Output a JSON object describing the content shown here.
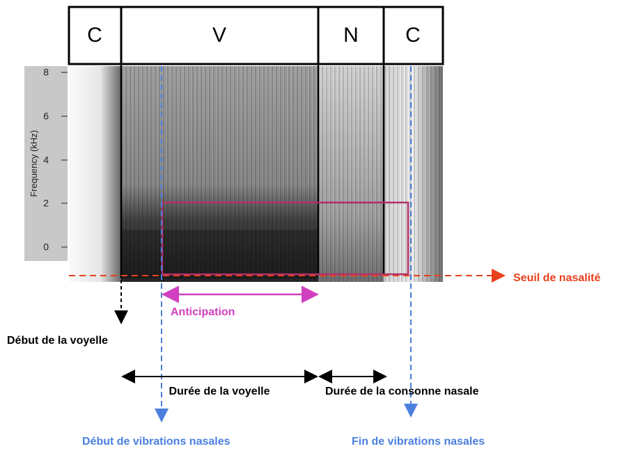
{
  "segments": [
    "C",
    "V",
    "N",
    "C"
  ],
  "axis": {
    "label": "Frequency (kHz)",
    "ticks": [
      "8",
      "6",
      "4",
      "2",
      "0"
    ]
  },
  "annotations": {
    "threshold": "Seuil de nasalité",
    "anticipation": "Anticipation",
    "vowel_onset": "Début de la voyelle",
    "vowel_duration": "Durée de la voyelle",
    "nasal_duration": "Durée de la consonne nasale",
    "nasal_onset": "Début de vibrations nasales",
    "nasal_offset": "Fin de vibrations nasales"
  }
}
